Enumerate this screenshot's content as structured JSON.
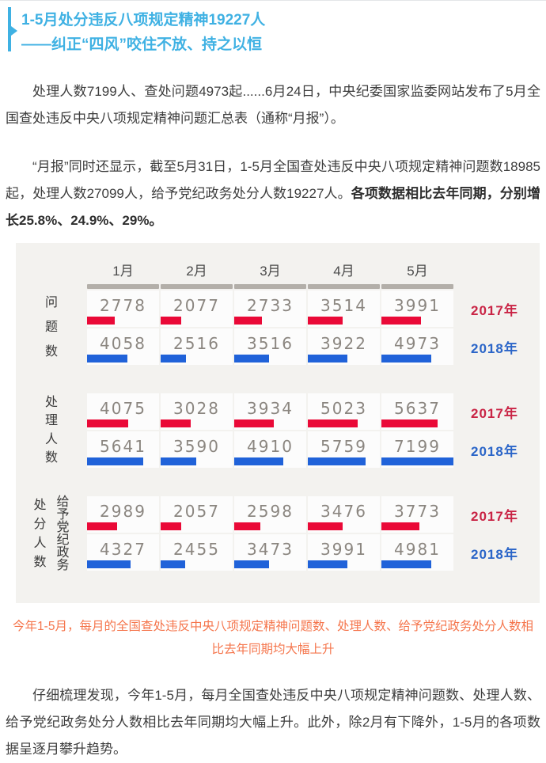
{
  "header": {
    "title_line1": "1-5月处分违反八项规定精神19227人",
    "title_line2": "——纠正“四风”咬住不放、持之以恒"
  },
  "paragraphs": {
    "p1": "处理人数7199人、查处问题4973起......6月24日，中央纪委国家监委网站发布了5月全国查处违反中央八项规定精神问题汇总表（通称“月报”）。",
    "p2_normal": "“月报”同时还显示，截至5月31日，1-5月全国查处违反中央八项规定精神问题数18985起，处理人数27099人，给予党纪政务处分人数19227人。",
    "p2_bold": "各项数据相比去年同期，分别增长25.8%、24.9%、29%。",
    "p3": "仔细梳理发现，今年1-5月，每月全国查处违反中央八项规定精神问题数、处理人数、给予党纪政务处分人数相比去年同期均大幅上升。此外，除2月有下降外，1-5月的各项数据呈逐月攀升趋势。"
  },
  "caption": "今年1-5月，每月的全国查处违反中央八项规定精神问题数、处理人数、给予党纪政务处分人数相比去年同期均大幅上升",
  "colors": {
    "title_accent": "#3fb1e3",
    "caption_text": "#f5764d",
    "chart_background": "#f3f2ef",
    "column_header_strip": "#b3afa9",
    "cell_value_text": "#8b8680"
  },
  "chart_data": {
    "type": "bar",
    "orientation": "horizontal",
    "title": "",
    "categories": [
      "1月",
      "2月",
      "3月",
      "4月",
      "5月"
    ],
    "scale_max": 7199,
    "legend_position": "right",
    "series_meta": [
      {
        "name": "2017年",
        "text_color": "#c92445",
        "bar_color": "#ea0937"
      },
      {
        "name": "2018年",
        "text_color": "#2a65c8",
        "bar_color": "#2062d9"
      }
    ],
    "groups": [
      {
        "label": "问题数",
        "label_columns": [
          "问题数"
        ],
        "series": [
          {
            "name": "2017年",
            "values": [
              2778,
              2077,
              2733,
              3514,
              3991
            ]
          },
          {
            "name": "2018年",
            "values": [
              4058,
              2516,
              3516,
              3922,
              4973
            ]
          }
        ]
      },
      {
        "label": "处理人数",
        "label_columns": [
          "处理人数"
        ],
        "series": [
          {
            "name": "2017年",
            "values": [
              4075,
              3028,
              3934,
              5023,
              5637
            ]
          },
          {
            "name": "2018年",
            "values": [
              5641,
              3590,
              4910,
              5759,
              7199
            ]
          }
        ]
      },
      {
        "label": "给予党纪政务处分人数",
        "label_columns": [
          "处分人数",
          "给予党纪政务"
        ],
        "series": [
          {
            "name": "2017年",
            "values": [
              2989,
              2057,
              2598,
              3476,
              3773
            ]
          },
          {
            "name": "2018年",
            "values": [
              4327,
              2455,
              3473,
              3991,
              4981
            ]
          }
        ]
      }
    ]
  }
}
